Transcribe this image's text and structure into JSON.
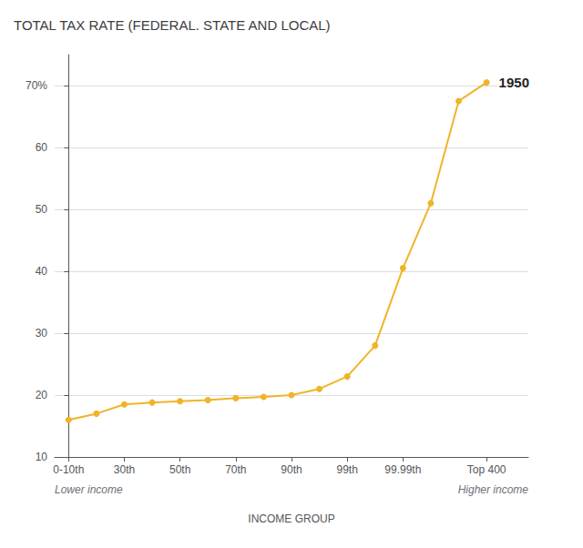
{
  "chart_data": {
    "type": "line",
    "title": "TOTAL TAX RATE (FEDERAL. STATE AND LOCAL)",
    "xlabel": "INCOME GROUP",
    "x": [
      0,
      1,
      2,
      3,
      4,
      5,
      6,
      7,
      8,
      9,
      10,
      11,
      12,
      13,
      14,
      15
    ],
    "values": [
      16,
      17,
      18.5,
      18.8,
      19.0,
      19.2,
      19.5,
      19.7,
      20.0,
      21.0,
      23.0,
      28.0,
      40.5,
      51.0,
      67.5,
      70.5
    ],
    "color": "#F0B429",
    "marker": "circle",
    "xlim": [
      -0.5,
      16.5
    ],
    "xticks": [
      {
        "value": 0,
        "label": "0-10th"
      },
      {
        "value": 2,
        "label": "30th"
      },
      {
        "value": 4,
        "label": "50th"
      },
      {
        "value": 6,
        "label": "70th"
      },
      {
        "value": 8,
        "label": "90th"
      },
      {
        "value": 10,
        "label": "99th"
      },
      {
        "value": 12,
        "label": "99.99th"
      },
      {
        "value": 15,
        "label": "Top 400"
      }
    ],
    "ylim": [
      10,
      75
    ],
    "yticks": [
      10,
      20,
      30,
      40,
      50,
      60,
      {
        "value": 70,
        "label": "70%"
      }
    ],
    "grid": true,
    "annotations": [
      {
        "text": "1950",
        "x": 15,
        "y": 70.5
      },
      {
        "text": "Lower income"
      },
      {
        "text": "Higher income"
      }
    ]
  }
}
